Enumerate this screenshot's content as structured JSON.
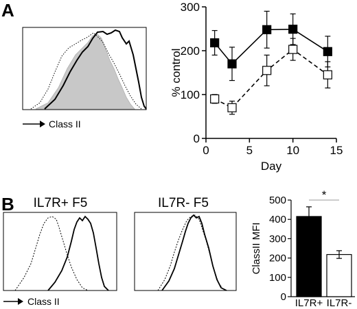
{
  "panels": {
    "a_label": "A",
    "b_label": "B",
    "a_histogram_axis_label": "Class II",
    "b_histogram_axis_label": "Class II",
    "b_histogram_titles": [
      "IL7R+ F5",
      "IL7R- F5"
    ]
  },
  "chart_data": [
    {
      "type": "line",
      "panel": "A",
      "xlabel": "Day",
      "ylabel": "% control",
      "xlim": [
        0,
        15
      ],
      "ylim": [
        0,
        300
      ],
      "xticks": [
        0,
        5,
        10,
        15
      ],
      "yticks": [
        0,
        100,
        200,
        300
      ],
      "grid": false,
      "series": [
        {
          "marker": "filled-square",
          "line": "solid",
          "color": "#000000",
          "x": [
            1,
            3,
            7,
            10,
            14
          ],
          "y": [
            218,
            170,
            248,
            249,
            198
          ],
          "err": [
            28,
            38,
            42,
            35,
            35
          ]
        },
        {
          "marker": "open-square",
          "line": "dashed",
          "color": "#000000",
          "x": [
            1,
            3,
            7,
            10,
            14
          ],
          "y": [
            90,
            70,
            155,
            203,
            145
          ],
          "err": [
            10,
            15,
            35,
            25,
            30
          ]
        }
      ]
    },
    {
      "type": "bar",
      "panel": "B",
      "ylabel": "ClassII MFI",
      "ylim": [
        0,
        500
      ],
      "yticks": [
        0,
        100,
        200,
        300,
        400,
        500
      ],
      "categories": [
        "IL7R+",
        "IL7R-"
      ],
      "values": [
        415,
        218
      ],
      "err": [
        50,
        20
      ],
      "fills": [
        "#000000",
        "#ffffff"
      ],
      "significance": "*"
    }
  ]
}
